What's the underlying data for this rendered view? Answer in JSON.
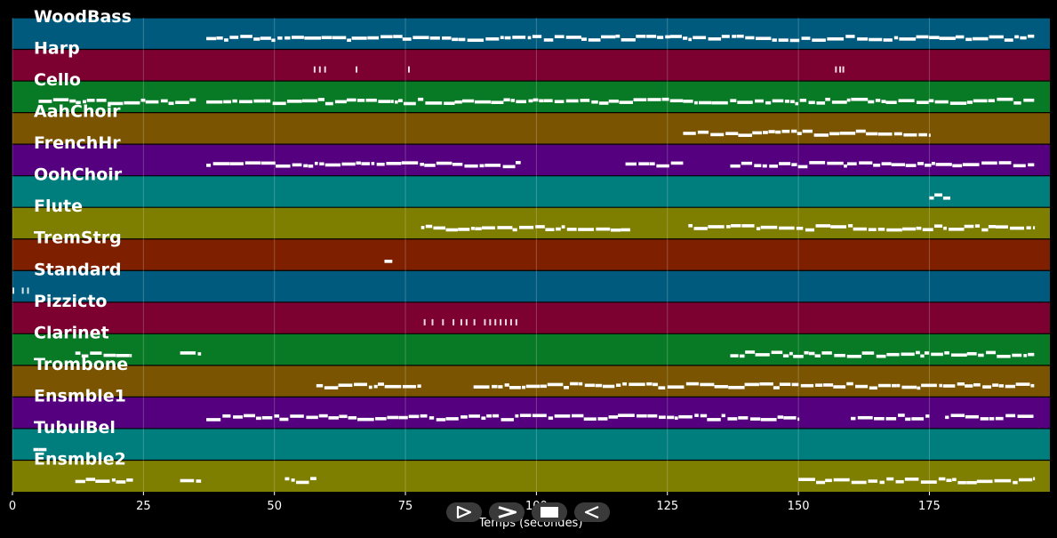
{
  "chart_data": {
    "type": "piano-roll",
    "xlabel": "Temps (secondes)",
    "xlim": [
      0,
      198
    ],
    "x_ticks": [
      0,
      25,
      50,
      75,
      100,
      125,
      150,
      175
    ],
    "tracks": [
      {
        "name": "WoodBass",
        "color": "#005a7e",
        "segments": [
          [
            37,
            195
          ]
        ],
        "notes": []
      },
      {
        "name": "Harp",
        "color": "#7c0030",
        "segments": [],
        "notes": [
          57.5,
          58.5,
          59.5,
          65.5,
          75.5,
          157,
          157.8,
          158.4
        ]
      },
      {
        "name": "Cello",
        "color": "#087a25",
        "segments": [
          [
            5,
            35
          ],
          [
            37,
            195
          ]
        ],
        "notes": []
      },
      {
        "name": "AahChoir",
        "color": "#7a5400",
        "segments": [
          [
            128,
            175
          ]
        ],
        "notes": []
      },
      {
        "name": "FrenchHr",
        "color": "#55007e",
        "segments": [
          [
            37,
            97
          ],
          [
            117,
            128
          ],
          [
            137,
            195
          ]
        ],
        "notes": []
      },
      {
        "name": "OohChoir",
        "color": "#007e7e",
        "segments": [
          [
            175,
            179
          ]
        ],
        "notes": []
      },
      {
        "name": "Flute",
        "color": "#7e7e00",
        "segments": [
          [
            78,
            118
          ],
          [
            129,
            195
          ]
        ],
        "notes": []
      },
      {
        "name": "TremStrg",
        "color": "#7e2000",
        "segments": [
          [
            71,
            72.5
          ]
        ],
        "notes": []
      },
      {
        "name": "Standard",
        "color": "#005a7e",
        "segments": [],
        "notes": [
          0,
          1.8,
          2.8
        ]
      },
      {
        "name": "Pizzicto",
        "color": "#7c0030",
        "segments": [],
        "notes": [
          78.5,
          80,
          82,
          84,
          85.5,
          86.5,
          88,
          90,
          91,
          92,
          93,
          94,
          95,
          96
        ]
      },
      {
        "name": "Clarinet",
        "color": "#087a25",
        "segments": [
          [
            12,
            22.5
          ],
          [
            32,
            36
          ],
          [
            137,
            195
          ]
        ],
        "notes": []
      },
      {
        "name": "Trombone",
        "color": "#7a5400",
        "segments": [
          [
            58,
            78
          ],
          [
            88,
            195
          ]
        ],
        "notes": []
      },
      {
        "name": "Ensmble1",
        "color": "#55007e",
        "segments": [
          [
            37,
            150
          ],
          [
            160,
            175
          ],
          [
            178,
            195
          ]
        ],
        "notes": []
      },
      {
        "name": "TubulBel",
        "color": "#007e7e",
        "segments": [
          [
            4,
            6.5
          ]
        ],
        "notes": []
      },
      {
        "name": "Ensmble2",
        "color": "#7e7e00",
        "segments": [
          [
            12,
            23
          ],
          [
            32,
            36
          ],
          [
            52,
            58
          ],
          [
            150,
            195
          ]
        ],
        "notes": []
      }
    ]
  },
  "controls": [
    {
      "name": "play-button",
      "icon": "play-outline-icon"
    },
    {
      "name": "next-button",
      "icon": "chevron-right-icon"
    },
    {
      "name": "stop-button",
      "icon": "stop-icon"
    },
    {
      "name": "rewind-button",
      "icon": "rewind-icon"
    }
  ]
}
